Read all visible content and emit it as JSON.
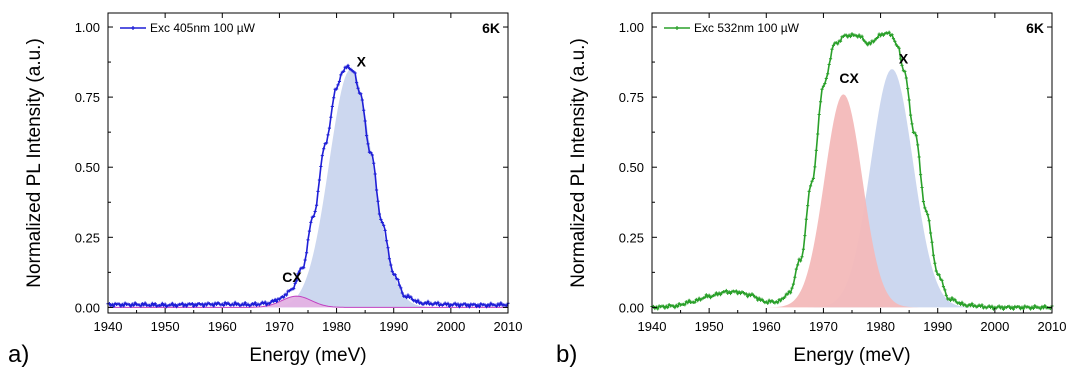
{
  "chart_data": [
    {
      "type": "line",
      "panel_label": "a)",
      "xlabel": "Energy (meV)",
      "ylabel": "Normalized PL Intensity (a.u.)",
      "xlim": [
        1940,
        2010
      ],
      "ylim": [
        -0.02,
        1.05
      ],
      "x_ticks": [
        "1940",
        "1950",
        "1960",
        "1970",
        "1980",
        "1990",
        "2000",
        "2010"
      ],
      "y_ticks": [
        "0.00",
        "0.25",
        "0.50",
        "0.75",
        "1.00"
      ],
      "temperature_label": "6K",
      "legend": "top-left",
      "series": [
        {
          "name": "Exc 405nm 100 µW",
          "color": "#1f1fd6",
          "x": [
            1940,
            1945,
            1950,
            1955,
            1960,
            1965,
            1968,
            1970,
            1972,
            1974,
            1976,
            1978,
            1980,
            1981,
            1982,
            1983,
            1984,
            1986,
            1988,
            1990,
            1992,
            1995,
            2000,
            2005,
            2010
          ],
          "y": [
            0.01,
            0.01,
            0.008,
            0.01,
            0.012,
            0.01,
            0.015,
            0.03,
            0.06,
            0.14,
            0.33,
            0.58,
            0.78,
            0.84,
            0.86,
            0.84,
            0.77,
            0.55,
            0.3,
            0.12,
            0.04,
            0.015,
            0.01,
            0.008,
            0.01
          ]
        }
      ],
      "fits": [
        {
          "label": "X",
          "type": "gaussian",
          "center": 1982.5,
          "amplitude": 0.85,
          "sigma": 3.8,
          "fill": "#c9d5ee"
        },
        {
          "label": "CX",
          "type": "gaussian",
          "center": 1973,
          "amplitude": 0.04,
          "sigma": 2.6,
          "fill": "#e3b2e3"
        }
      ],
      "annotations": [
        {
          "text": "X",
          "x": 1983.5,
          "y": 0.86
        },
        {
          "text": "CX",
          "x": 1970.5,
          "y": 0.09
        }
      ]
    },
    {
      "type": "line",
      "panel_label": "b)",
      "xlabel": "Energy (meV)",
      "ylabel": "Normalized PL Intensity (a.u.)",
      "xlim": [
        1940,
        2010
      ],
      "ylim": [
        -0.02,
        1.05
      ],
      "x_ticks": [
        "1940",
        "1950",
        "1960",
        "1970",
        "1980",
        "1990",
        "2000",
        "2010"
      ],
      "y_ticks": [
        "0.00",
        "0.25",
        "0.50",
        "0.75",
        "1.00"
      ],
      "temperature_label": "6K",
      "legend": "top-left",
      "series": [
        {
          "name": "Exc 532nm 100 µW",
          "color": "#2aa02a",
          "x": [
            1940,
            1944,
            1947,
            1950,
            1953,
            1955,
            1957,
            1960,
            1962,
            1964,
            1966,
            1968,
            1970,
            1972,
            1974,
            1976,
            1978,
            1980,
            1981,
            1982,
            1983,
            1984,
            1986,
            1988,
            1990,
            1992,
            1995,
            2000,
            2005,
            2010
          ],
          "y": [
            0.0,
            0.005,
            0.02,
            0.04,
            0.055,
            0.055,
            0.045,
            0.02,
            0.02,
            0.05,
            0.17,
            0.45,
            0.79,
            0.94,
            0.97,
            0.97,
            0.94,
            0.97,
            0.98,
            0.97,
            0.93,
            0.85,
            0.62,
            0.34,
            0.12,
            0.03,
            0.008,
            0.0,
            0.0,
            0.0
          ]
        }
      ],
      "fits": [
        {
          "label": "X",
          "type": "gaussian",
          "center": 1982,
          "amplitude": 0.85,
          "sigma": 3.7,
          "fill": "#c9d5ee"
        },
        {
          "label": "CX",
          "type": "gaussian",
          "center": 1973.5,
          "amplitude": 0.76,
          "sigma": 3.3,
          "fill": "#f3b9b9"
        }
      ],
      "annotations": [
        {
          "text": "X",
          "x": 1983.2,
          "y": 0.87
        },
        {
          "text": "CX",
          "x": 1972.8,
          "y": 0.8
        }
      ]
    }
  ]
}
